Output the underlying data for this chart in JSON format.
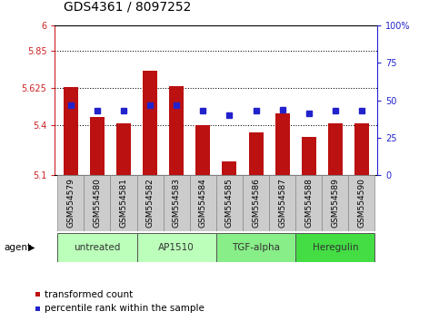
{
  "title": "GDS4361 / 8097252",
  "samples": [
    "GSM554579",
    "GSM554580",
    "GSM554581",
    "GSM554582",
    "GSM554583",
    "GSM554584",
    "GSM554585",
    "GSM554586",
    "GSM554587",
    "GSM554588",
    "GSM554589",
    "GSM554590"
  ],
  "red_values": [
    5.63,
    5.45,
    5.41,
    5.73,
    5.635,
    5.4,
    5.18,
    5.355,
    5.47,
    5.33,
    5.41,
    5.41
  ],
  "blue_values": [
    47,
    43,
    43,
    47,
    47,
    43,
    40,
    43,
    44,
    41,
    43,
    43
  ],
  "ylim_left": [
    5.1,
    6.0
  ],
  "ylim_right": [
    0,
    100
  ],
  "yticks_left": [
    5.1,
    5.4,
    5.625,
    5.85,
    6.0
  ],
  "ytick_labels_left": [
    "5.1",
    "5.4",
    "5.625",
    "5.85",
    "6"
  ],
  "yticks_right": [
    0,
    25,
    50,
    75,
    100
  ],
  "ytick_labels_right": [
    "0",
    "25",
    "50",
    "75",
    "100%"
  ],
  "hlines": [
    5.85,
    5.625,
    5.4
  ],
  "bar_color": "#bb1111",
  "marker_color": "#2222cc",
  "bar_bottom": 5.1,
  "agents": [
    {
      "label": "untreated",
      "start": 0,
      "end": 3,
      "color": "#bbffbb"
    },
    {
      "label": "AP1510",
      "start": 3,
      "end": 6,
      "color": "#bbffbb"
    },
    {
      "label": "TGF-alpha",
      "start": 6,
      "end": 9,
      "color": "#88ee88"
    },
    {
      "label": "Heregulin",
      "start": 9,
      "end": 12,
      "color": "#44dd44"
    }
  ],
  "left_axis_color": "#cc2222",
  "right_axis_color": "#2222cc",
  "legend_red_label": "transformed count",
  "legend_blue_label": "percentile rank within the sample",
  "bar_width": 0.55,
  "title_fontsize": 10,
  "tick_fontsize": 7,
  "xlabel_bg": "#cccccc",
  "xlabel_border": "#888888"
}
